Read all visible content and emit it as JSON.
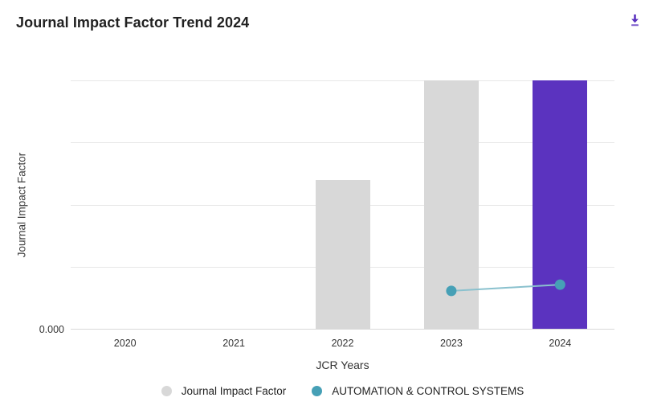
{
  "header": {
    "title": "Journal Impact Factor Trend 2024",
    "download_icon": "download-icon"
  },
  "chart_data": {
    "type": "bar",
    "title": "Journal Impact Factor Trend 2024",
    "xlabel": "JCR Years",
    "ylabel": "Journal Impact Factor",
    "categories": [
      "2020",
      "2021",
      "2022",
      "2023",
      "2024"
    ],
    "series": [
      {
        "name": "Journal Impact Factor",
        "type": "bar",
        "values": [
          null,
          null,
          2.4,
          4.0,
          4.0
        ]
      },
      {
        "name": "AUTOMATION & CONTROL SYSTEMS",
        "type": "line",
        "values": [
          null,
          null,
          null,
          0.61,
          0.71
        ]
      }
    ],
    "ylim": [
      0,
      4
    ],
    "units": "gridline units (numeric y-axis labels not shown except baseline)",
    "y_tick_labels": [
      "0.000"
    ],
    "highlight_category": "2024",
    "grid": "horizontal",
    "legend_position": "bottom",
    "colors": {
      "bar_default": "#d8d8d8",
      "bar_highlight": "#5b33bf",
      "line": "#8ac1ce",
      "point": "#46a0b6",
      "accent": "#5b33bf"
    }
  }
}
